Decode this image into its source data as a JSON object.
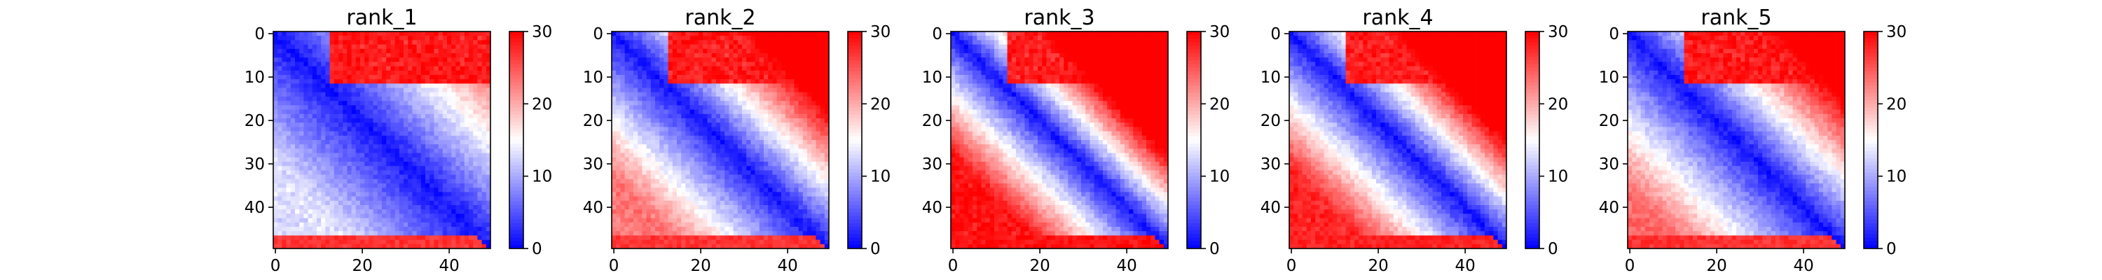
{
  "chart_data": {
    "type": "heatmap",
    "colormap": "bwr",
    "color_min": "#0000ff",
    "color_mid": "#ffffff",
    "color_max": "#ff0000",
    "matrix_size": 50,
    "clim": [
      0,
      30
    ],
    "colorbar_ticks": [
      "0",
      "10",
      "20",
      "30"
    ],
    "x_ticks": [
      "0",
      "20",
      "40"
    ],
    "y_ticks": [
      "0",
      "10",
      "20",
      "30",
      "40"
    ],
    "grid": false,
    "panels": [
      {
        "title": "rank_1",
        "approx_pattern": {
          "diag_slope": 0.45,
          "upper_right_value": 29,
          "lower_left_value": 12,
          "bottom_rows_value": 27
        }
      },
      {
        "title": "rank_2",
        "approx_pattern": {
          "diag_slope": 0.75,
          "upper_right_value": 29,
          "lower_left_value": 22,
          "bottom_rows_value": 27
        }
      },
      {
        "title": "rank_3",
        "approx_pattern": {
          "diag_slope": 1.1,
          "upper_right_value": 29,
          "lower_left_value": 28,
          "bottom_rows_value": 29
        }
      },
      {
        "title": "rank_4",
        "approx_pattern": {
          "diag_slope": 0.95,
          "upper_right_value": 29,
          "lower_left_value": 27,
          "bottom_rows_value": 28
        }
      },
      {
        "title": "rank_5",
        "approx_pattern": {
          "diag_slope": 0.7,
          "upper_right_value": 29,
          "lower_left_value": 23,
          "bottom_rows_value": 27
        }
      }
    ]
  }
}
